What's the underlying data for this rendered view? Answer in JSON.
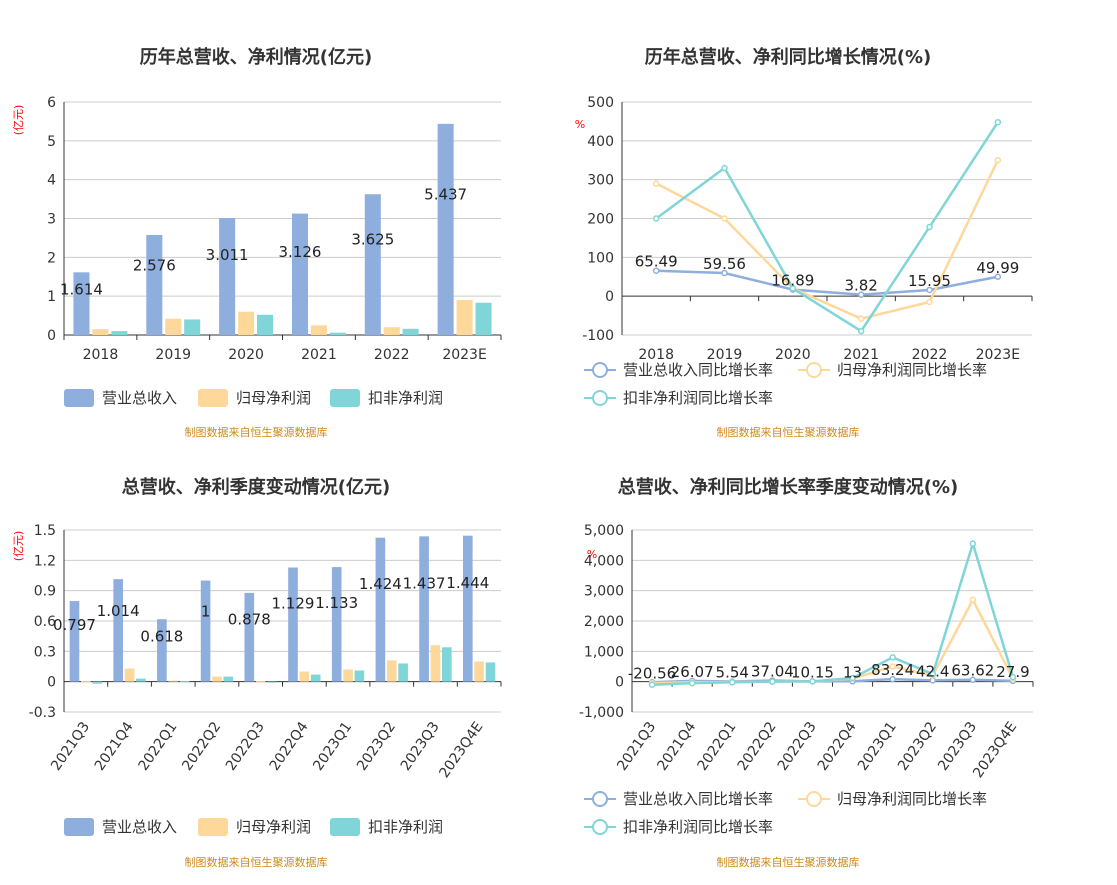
{
  "source_text": "制图数据来自恒生聚源数据库",
  "colors": {
    "revenue": "#8eaedd",
    "netprofit": "#fdd89a",
    "deducted": "#80d5d8",
    "grid": "#cccccc",
    "axis": "#333333",
    "unit": "#ff0000",
    "source": "#cc8a1e"
  },
  "chart_data": [
    {
      "id": "annual-amounts",
      "type": "bar",
      "title": "历年总营收、净利情况(亿元)",
      "unit_label": "(亿元)",
      "categories": [
        "2018",
        "2019",
        "2020",
        "2021",
        "2022",
        "2023E"
      ],
      "ylim": [
        0,
        6
      ],
      "yticks": [
        0,
        1,
        2,
        3,
        4,
        5,
        6
      ],
      "ytick_labels": [
        "0",
        "1",
        "2",
        "3",
        "4",
        "5",
        "6"
      ],
      "grid": true,
      "legend_position": "bottom",
      "series": [
        {
          "name": "营业总收入",
          "color_key": "revenue",
          "values": [
            1.614,
            2.576,
            3.011,
            3.126,
            3.625,
            5.437
          ],
          "labels": [
            "1.614",
            "2.576",
            "3.011",
            "3.126",
            "3.625",
            "5.437"
          ]
        },
        {
          "name": "归母净利润",
          "color_key": "netprofit",
          "values": [
            0.15,
            0.42,
            0.6,
            0.25,
            0.2,
            0.9
          ]
        },
        {
          "name": "扣非净利润",
          "color_key": "deducted",
          "values": [
            0.1,
            0.4,
            0.52,
            0.06,
            0.16,
            0.83
          ]
        }
      ]
    },
    {
      "id": "annual-growth",
      "type": "line",
      "title": "历年总营收、净利同比增长情况(%)",
      "unit_label": "%",
      "categories": [
        "2018",
        "2019",
        "2020",
        "2021",
        "2022",
        "2023E"
      ],
      "ylim": [
        -100,
        500
      ],
      "yticks": [
        -100,
        0,
        100,
        200,
        300,
        400,
        500
      ],
      "ytick_labels": [
        "-100",
        "0",
        "100",
        "200",
        "300",
        "400",
        "500"
      ],
      "grid": true,
      "legend_position": "bottom",
      "series": [
        {
          "name": "营业总收入同比增长率",
          "color_key": "revenue",
          "values": [
            65.49,
            59.56,
            16.89,
            3.82,
            15.95,
            49.99
          ],
          "labels": [
            "65.49",
            "59.56",
            "16.89",
            "3.82",
            "15.95",
            "49.99"
          ]
        },
        {
          "name": "归母净利润同比增长率",
          "color_key": "netprofit",
          "values": [
            290,
            200,
            20,
            -58,
            -15,
            350
          ]
        },
        {
          "name": "扣非净利润同比增长率",
          "color_key": "deducted",
          "values": [
            200,
            330,
            20,
            -90,
            178,
            448
          ]
        }
      ]
    },
    {
      "id": "quarterly-amounts",
      "type": "bar",
      "title": "总营收、净利季度变动情况(亿元)",
      "unit_label": "(亿元)",
      "categories": [
        "2021Q3",
        "2021Q4",
        "2022Q1",
        "2022Q2",
        "2022Q3",
        "2022Q4",
        "2023Q1",
        "2023Q2",
        "2023Q3",
        "2023Q4E"
      ],
      "ylim": [
        -0.3,
        1.5
      ],
      "yticks": [
        -0.3,
        0,
        0.3,
        0.6,
        0.9,
        1.2,
        1.5
      ],
      "ytick_labels": [
        "-0.3",
        "0",
        "0.3",
        "0.6",
        "0.9",
        "1.2",
        "1.5"
      ],
      "grid": true,
      "legend_position": "bottom",
      "series": [
        {
          "name": "营业总收入",
          "color_key": "revenue",
          "values": [
            0.797,
            1.014,
            0.618,
            1.0,
            0.878,
            1.129,
            1.133,
            1.424,
            1.437,
            1.444
          ],
          "labels": [
            "0.797",
            "1.014",
            "0.618",
            "1",
            "0.878",
            "1.129",
            "1.133",
            "1.424",
            "1.437",
            "1.444"
          ]
        },
        {
          "name": "归母净利润",
          "color_key": "netprofit",
          "values": [
            0.005,
            0.13,
            0.01,
            0.05,
            0.005,
            0.1,
            0.12,
            0.21,
            0.36,
            0.2
          ]
        },
        {
          "name": "扣非净利润",
          "color_key": "deducted",
          "values": [
            -0.02,
            0.03,
            0.005,
            0.05,
            -0.005,
            0.07,
            0.11,
            0.18,
            0.34,
            0.19
          ]
        }
      ]
    },
    {
      "id": "quarterly-growth",
      "type": "line",
      "title": "总营收、净利同比增长率季度变动情况(%)",
      "unit_label": "%",
      "categories": [
        "2021Q3",
        "2021Q4",
        "2022Q1",
        "2022Q2",
        "2022Q3",
        "2022Q4",
        "2023Q1",
        "2023Q2",
        "2023Q3",
        "2023Q4E"
      ],
      "ylim": [
        -1000,
        5000
      ],
      "yticks": [
        -1000,
        0,
        1000,
        2000,
        3000,
        4000,
        5000
      ],
      "ytick_labels": [
        "-1,000",
        "0",
        "1,000",
        "2,000",
        "3,000",
        "4,000",
        "5,000"
      ],
      "grid": true,
      "legend_position": "bottom",
      "series": [
        {
          "name": "营业总收入同比增长率",
          "color_key": "revenue",
          "values": [
            -20.56,
            26.07,
            5.54,
            37.04,
            10.15,
            13,
            83.24,
            42.4,
            63.62,
            27.9
          ],
          "labels": [
            "-20.56",
            "26.07",
            "5.54",
            "37.04",
            "10.15",
            "13",
            "83.24",
            "42.4",
            "63.62",
            "27.9"
          ]
        },
        {
          "name": "归母净利润同比增长率",
          "color_key": "netprofit",
          "values": [
            -50,
            -20,
            -10,
            0,
            10,
            100,
            500,
            200,
            2700,
            100
          ]
        },
        {
          "name": "扣非净利润同比增长率",
          "color_key": "deducted",
          "values": [
            -100,
            -50,
            -20,
            0,
            10,
            120,
            800,
            250,
            4550,
            150
          ]
        }
      ]
    }
  ]
}
